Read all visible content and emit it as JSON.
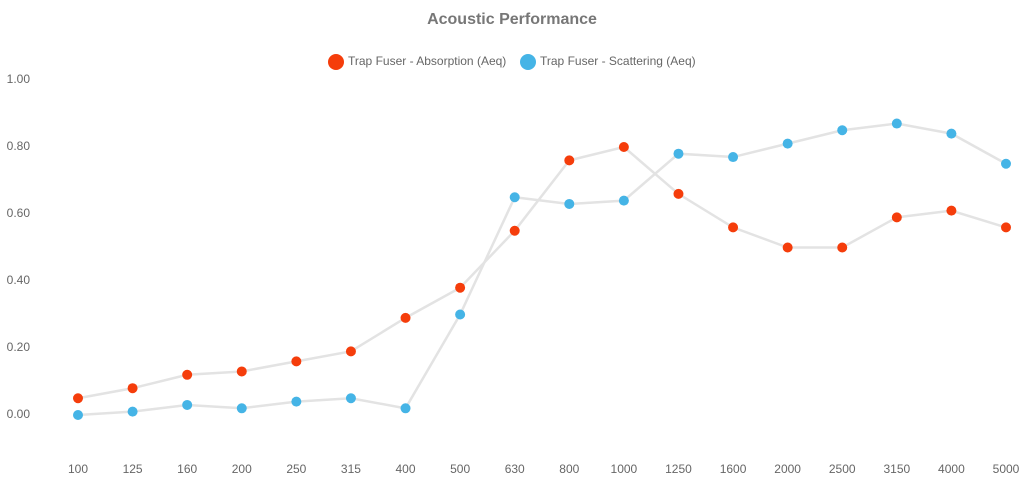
{
  "chart_data": {
    "type": "line",
    "title": "Acoustic Performance",
    "categories": [
      "100",
      "125",
      "160",
      "200",
      "250",
      "315",
      "400",
      "500",
      "630",
      "800",
      "1000",
      "1250",
      "1600",
      "2000",
      "2500",
      "3150",
      "4000",
      "5000"
    ],
    "series": [
      {
        "name": "Trap Fuser - Absorption (Aeq)",
        "color": "#f53d0b",
        "values": [
          0.05,
          0.08,
          0.12,
          0.13,
          0.16,
          0.19,
          0.29,
          0.38,
          0.55,
          0.76,
          0.8,
          0.66,
          0.56,
          0.5,
          0.5,
          0.59,
          0.61,
          0.56
        ]
      },
      {
        "name": "Trap Fuser - Scattering (Aeq)",
        "color": "#45b4e6",
        "values": [
          0.0,
          0.01,
          0.03,
          0.02,
          0.04,
          0.05,
          0.02,
          0.3,
          0.65,
          0.63,
          0.64,
          0.78,
          0.77,
          0.81,
          0.85,
          0.87,
          0.84,
          0.75
        ]
      }
    ],
    "line_color": "#e3e3e3",
    "ylim": [
      -0.1,
      1.0
    ],
    "yticks": [
      {
        "value": 0,
        "label": "0.00"
      },
      {
        "value": 0.2,
        "label": "0.20"
      },
      {
        "value": 0.4,
        "label": "0.40"
      },
      {
        "value": 0.6,
        "label": "0.60"
      },
      {
        "value": 0.8,
        "label": "0.80"
      },
      {
        "value": 1,
        "label": "1.00"
      }
    ],
    "grid": false
  }
}
